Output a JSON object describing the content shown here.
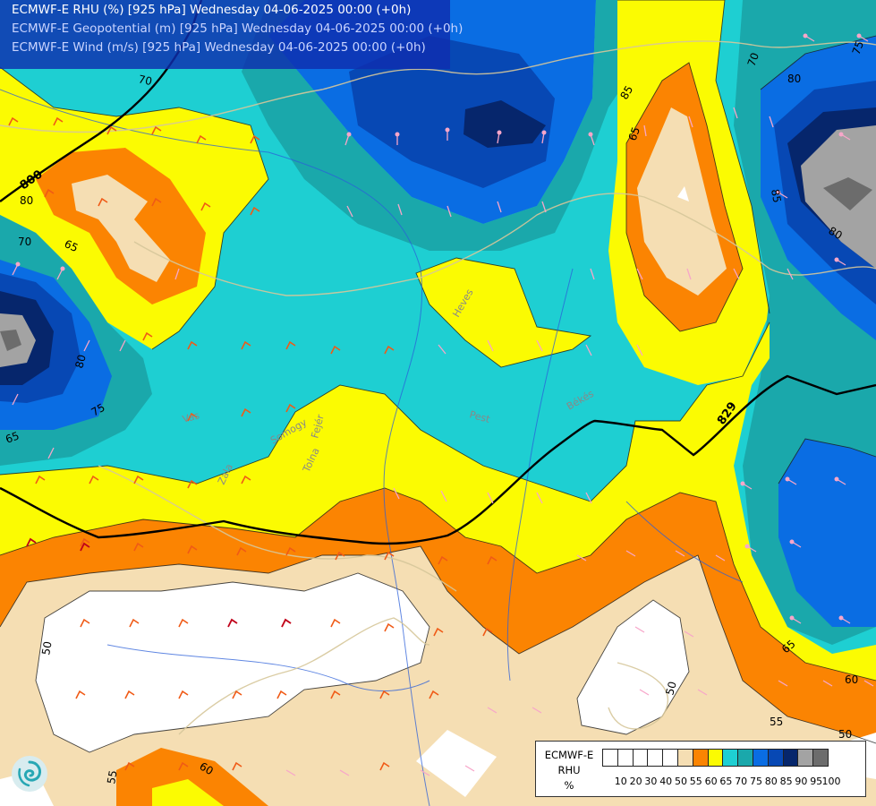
{
  "header": {
    "line1": "ECMWF-E RHU (%) [925 hPa] Wednesday 04-06-2025 00:00 (+0h)",
    "line2": "ECMWF-E Geopotential (m) [925 hPa] Wednesday 04-06-2025 00:00 (+0h)",
    "line3": "ECMWF-E Wind (m/s) [925 hPa] Wednesday 04-06-2025 00:00 (+0h)"
  },
  "legend": {
    "title_line1": "ECMWF-E",
    "title_line2": "RHU",
    "title_line3": "%",
    "levels": [
      "10",
      "20",
      "30",
      "40",
      "50",
      "55",
      "60",
      "65",
      "70",
      "75",
      "80",
      "85",
      "90",
      "95",
      "100"
    ],
    "colors": [
      "#ffffff",
      "#ffffff",
      "#ffffff",
      "#ffffff",
      "#ffffff",
      "#f5deb3",
      "#fb8402",
      "#fbfb02",
      "#1ecfd2",
      "#1aa8ab",
      "#0a6de3",
      "#0748b4",
      "#06266c",
      "#a3a3a3",
      "#6c6c6c"
    ]
  },
  "map": {
    "contour_labels": {
      "c70_a": "70",
      "c800": "800",
      "c80_w": "80",
      "c70_w": "70",
      "c65_w": "65",
      "c80_sw": "80",
      "c75_sw": "75",
      "c65_sw": "65",
      "c50_sw": "50",
      "c55_bot": "55",
      "c60_bot": "60",
      "c85_top": "85",
      "c65_ne": "65",
      "c70_ne": "70",
      "c75_ne": "75",
      "c80_ne": "80",
      "c80_e": "80",
      "c85_e": "85",
      "c829": "829",
      "c50_se": "50",
      "c55_se": "55",
      "c60_se": "60",
      "c65_se": "65",
      "c50_br": "50"
    },
    "place_labels": {
      "heves": "Heves",
      "bekes": "Békés",
      "pest": "Pest",
      "somogy": "Somogy",
      "tolna": "Tolna",
      "fejer": "Fejér",
      "zala": "Zala",
      "vas": "Vas"
    },
    "colors": {
      "white": "#ffffff",
      "beige": "#f5deb3",
      "orange": "#fb8402",
      "yellow": "#fbfb02",
      "cyan": "#1ecfd2",
      "teal": "#1aa8ab",
      "blue": "#0a6de3",
      "darkblue": "#0748b4",
      "navy": "#06266c",
      "lightgray": "#a3a3a3",
      "gray": "#6c6c6c"
    }
  },
  "icons": {
    "logo": "swirl-logo-icon"
  }
}
